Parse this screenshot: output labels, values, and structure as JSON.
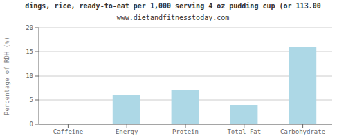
{
  "chart_data": {
    "type": "bar",
    "title": "dings, rice, ready-to-eat per 1,000 serving 4 oz pudding cup (or 113.00",
    "subtitle": "www.dietandfitnesstoday.com",
    "categories": [
      "Caffeine",
      "Energy",
      "Protein",
      "Total-Fat",
      "Carbohydrate"
    ],
    "values": [
      0,
      6,
      7,
      4,
      16
    ],
    "color": "#add8e6",
    "ylabel": "Percentage of RDH (%)",
    "ylim": [
      0,
      20
    ],
    "yticks": [
      0,
      5,
      10,
      15,
      20
    ],
    "grid": true
  }
}
